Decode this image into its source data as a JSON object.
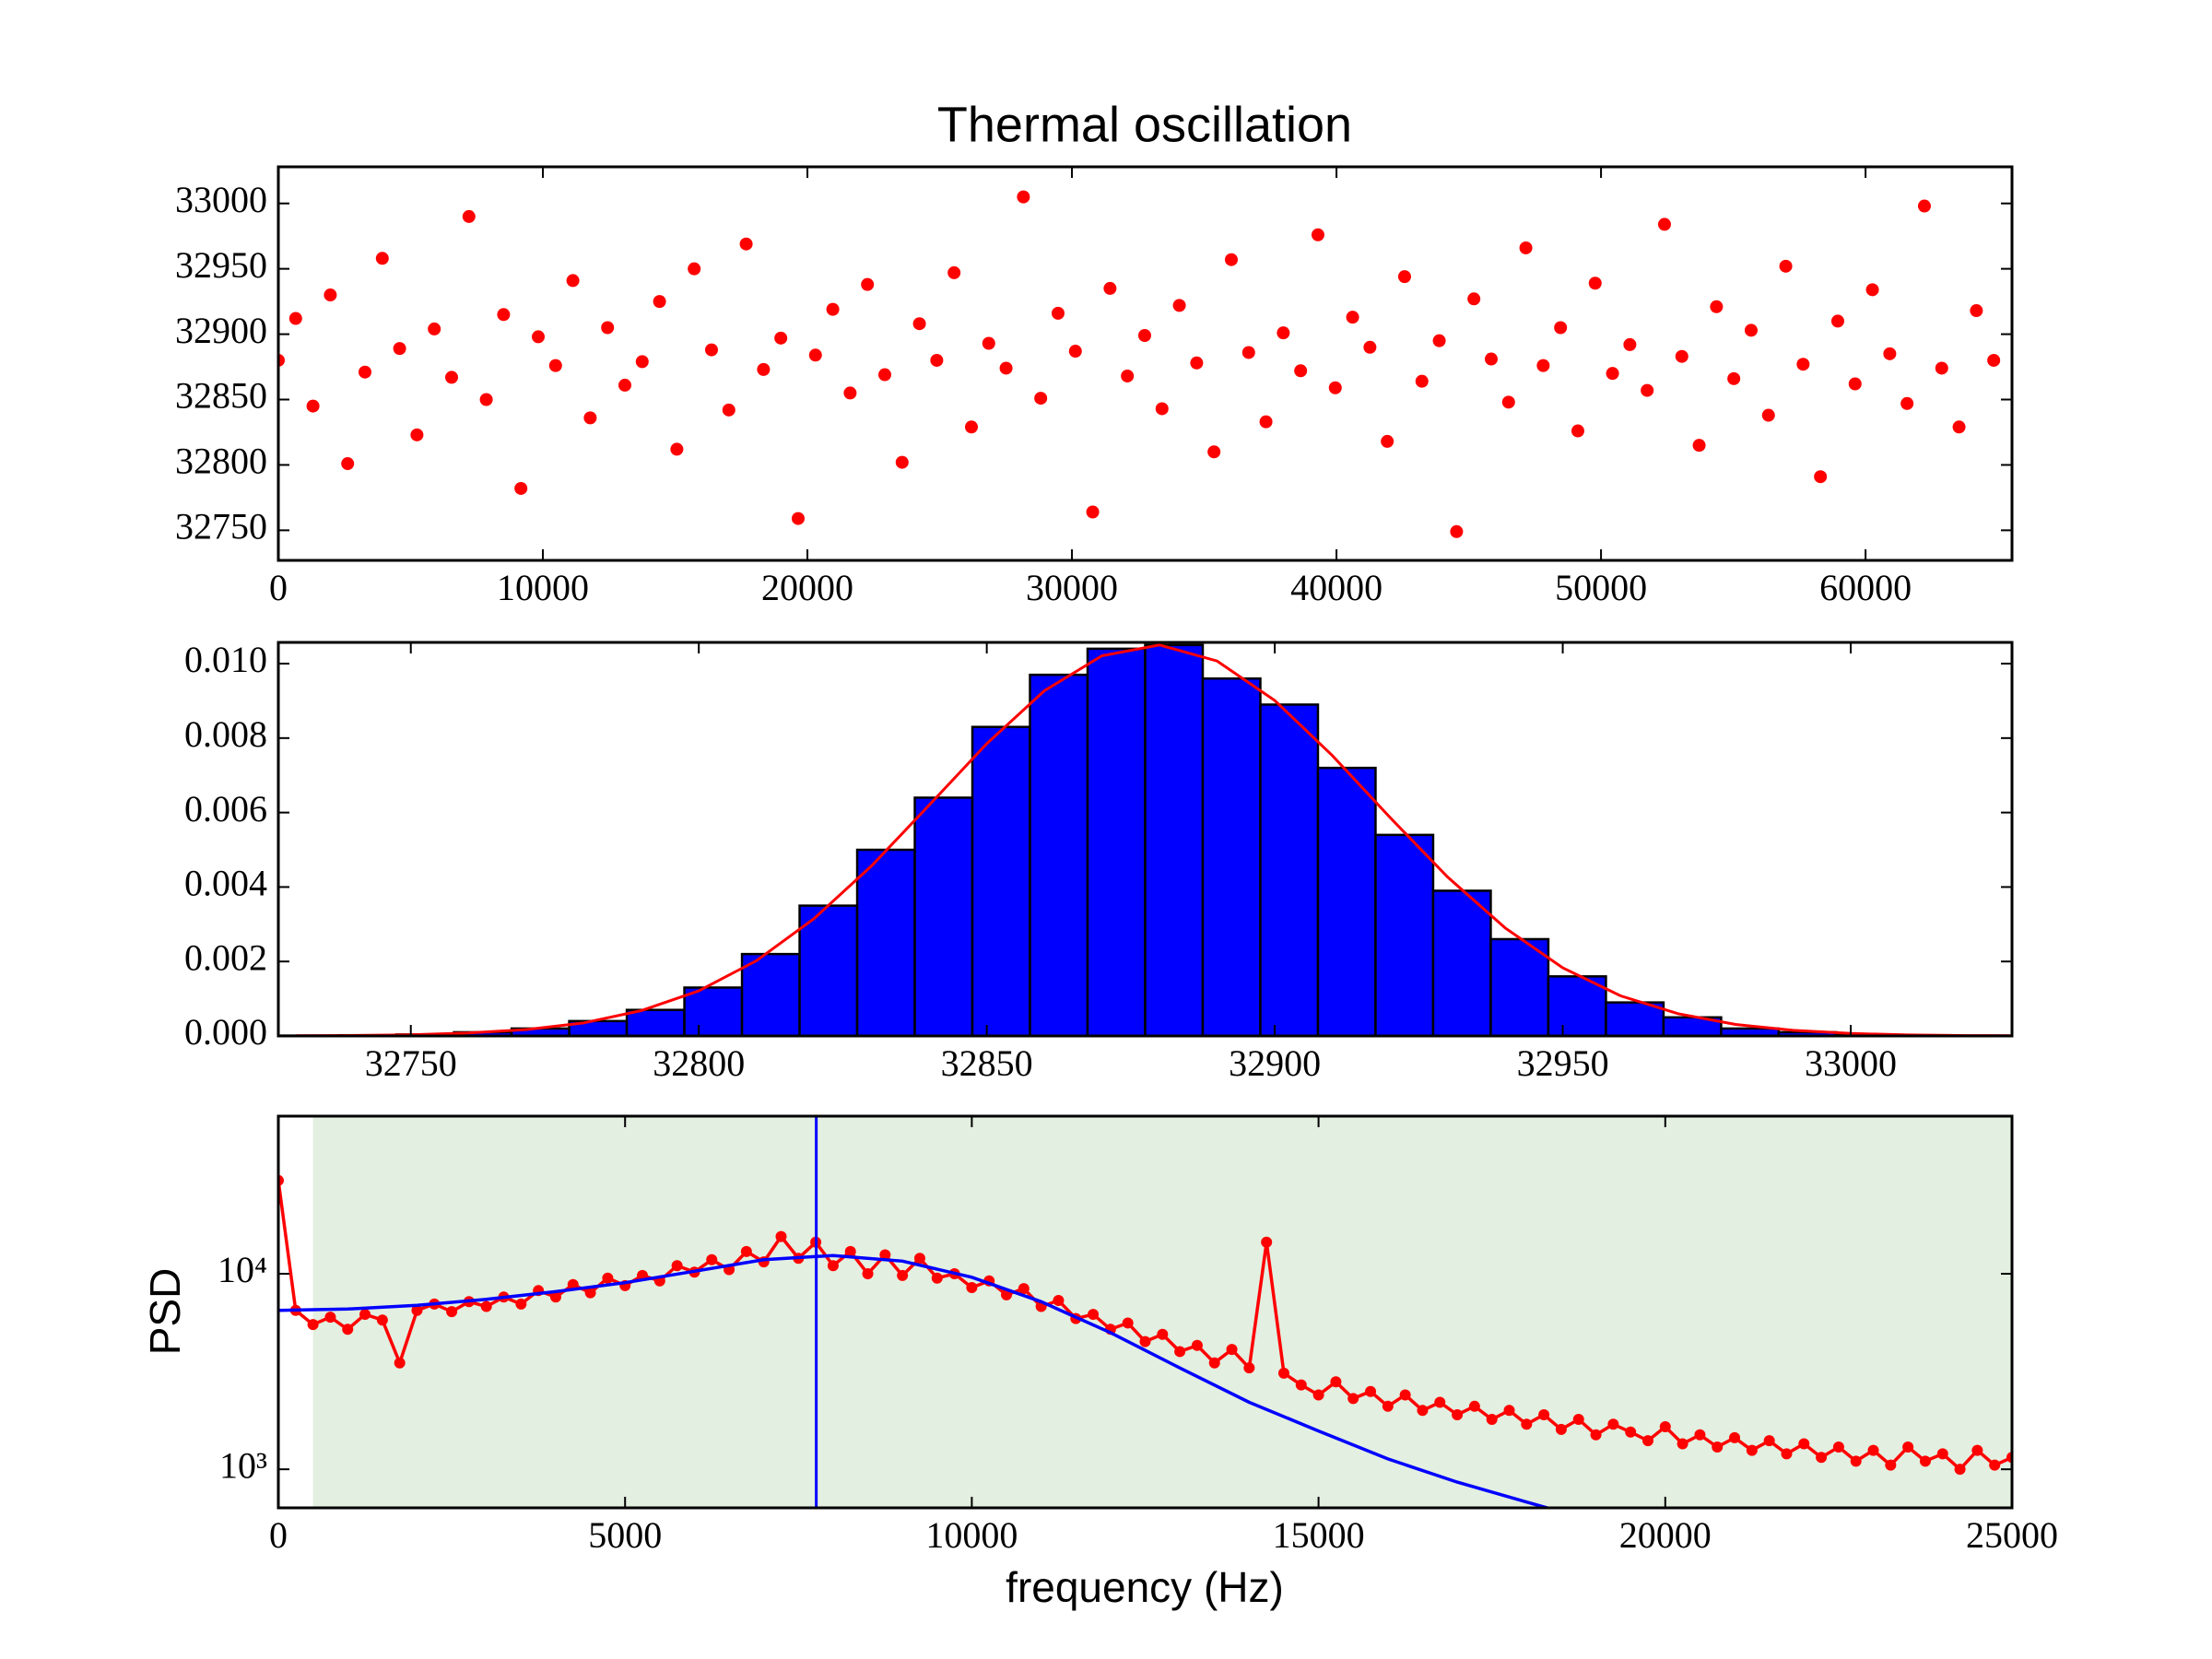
{
  "chart_data": [
    {
      "type": "scatter",
      "title": "Thermal oscillation",
      "color": "#ff0000",
      "x": [
        0,
        655,
        1310,
        1965,
        2620,
        3275,
        3930,
        4585,
        5240,
        5895,
        6550,
        7205,
        7860,
        8515,
        9170,
        9825,
        10480,
        11135,
        11790,
        12445,
        13100,
        13755,
        14410,
        15065,
        15720,
        16375,
        17030,
        17685,
        18340,
        18995,
        19650,
        20305,
        20960,
        21615,
        22270,
        22925,
        23580,
        24235,
        24890,
        25545,
        26200,
        26855,
        27510,
        28165,
        28820,
        29475,
        30130,
        30785,
        31440,
        32095,
        32750,
        33405,
        34060,
        34715,
        35370,
        36025,
        36680,
        37335,
        37990,
        38645,
        39300,
        39955,
        40610,
        41265,
        41920,
        42575,
        43230,
        43885,
        44540,
        45195,
        45850,
        46505,
        47160,
        47815,
        48470,
        49125,
        49780,
        50435,
        51090,
        51745,
        52400,
        53055,
        53710,
        54365,
        55020,
        55675,
        56330,
        56985,
        57640,
        58295,
        58950,
        59605,
        60260,
        60915,
        61570,
        62225,
        62880,
        63535,
        64190,
        64845
      ],
      "values": [
        32880,
        32912,
        32845,
        32930,
        32801,
        32871,
        32958,
        32889,
        32823,
        32904,
        32867,
        32990,
        32850,
        32915,
        32782,
        32898,
        32876,
        32941,
        32836,
        32905,
        32861,
        32879,
        32925,
        32812,
        32950,
        32888,
        32842,
        32969,
        32873,
        32897,
        32759,
        32884,
        32919,
        32855,
        32938,
        32869,
        32802,
        32908,
        32880,
        32947,
        32829,
        32893,
        32874,
        33005,
        32851,
        32916,
        32887,
        32764,
        32935,
        32868,
        32899,
        32843,
        32922,
        32878,
        32810,
        32957,
        32886,
        32833,
        32901,
        32872,
        32976,
        32859,
        32913,
        32890,
        32818,
        32944,
        32864,
        32895,
        32749,
        32927,
        32881,
        32848,
        32966,
        32876,
        32905,
        32826,
        32939,
        32870,
        32892,
        32857,
        32984,
        32883,
        32815,
        32921,
        32866,
        32903,
        32838,
        32952,
        32877,
        32791,
        32910,
        32862,
        32934,
        32885,
        32847,
        32998,
        32874,
        32829,
        32918,
        32880
      ],
      "xlim": [
        0,
        65536
      ],
      "xticks": [
        0,
        10000,
        20000,
        30000,
        40000,
        50000,
        60000
      ],
      "ylim": [
        32727,
        33028
      ],
      "yticks": [
        32750,
        32800,
        32850,
        32900,
        32950,
        33000
      ]
    },
    {
      "type": "histogram",
      "color": "#0000ff",
      "edgecolor": "#000000",
      "bins": [
        32727.5,
        32737.5,
        32747.5,
        32757.5,
        32767.5,
        32777.5,
        32787.5,
        32797.5,
        32807.5,
        32817.5,
        32827.5,
        32837.5,
        32847.5,
        32857.5,
        32867.5,
        32877.5,
        32887.5,
        32897.5,
        32907.5,
        32917.5,
        32927.5,
        32937.5,
        32947.5,
        32957.5,
        32967.5,
        32977.5,
        32987.5,
        32997.5,
        33007.5,
        33017.5,
        33027.5
      ],
      "values": [
        1e-05,
        2e-05,
        4e-05,
        0.0001,
        0.0002,
        0.0004,
        0.0007,
        0.0013,
        0.0022,
        0.0035,
        0.005,
        0.0064,
        0.0083,
        0.0097,
        0.0104,
        0.0105,
        0.0096,
        0.0089,
        0.0072,
        0.0054,
        0.0039,
        0.0026,
        0.0016,
        0.0009,
        0.0005,
        0.0002,
        0.0001,
        4e-05,
        2e-05,
        1e-05
      ],
      "series": [
        {
          "color": "#ff0000",
          "x": [
            32730,
            32740,
            32750,
            32760,
            32770,
            32780,
            32790,
            32800,
            32810,
            32820,
            32830,
            32840,
            32850,
            32860,
            32870,
            32880,
            32890,
            32900,
            32910,
            32920,
            32930,
            32940,
            32950,
            32960,
            32970,
            32980,
            32990,
            33000,
            33010,
            33020,
            33030
          ],
          "values": [
            4.8e-06,
            1.3e-05,
            3.3e-05,
            7.8e-05,
            0.00017,
            0.00035,
            0.00068,
            0.00121,
            0.00202,
            0.00315,
            0.00457,
            0.0062,
            0.00785,
            0.00927,
            0.01021,
            0.0105,
            0.01007,
            0.00901,
            0.00753,
            0.00587,
            0.00427,
            0.0029,
            0.00183,
            0.00108,
            0.0006,
            0.00031,
            0.00015,
            6.6e-05,
            2.8e-05,
            1.1e-05,
            3.9e-06
          ]
        }
      ],
      "xlim": [
        32727,
        33028
      ],
      "xticks": [
        32750,
        32800,
        32850,
        32900,
        32950,
        33000
      ],
      "ylim": [
        0,
        0.01057
      ],
      "yticks": [
        {
          "value": 0,
          "label": "0.000"
        },
        0.002,
        0.004,
        0.006,
        0.008,
        {
          "value": 0.01,
          "label": "0.010"
        }
      ]
    },
    {
      "type": "line",
      "xlabel": "frequency (Hz)",
      "ylabel": "PSD",
      "yscale": "log",
      "spans": [
        {
          "x": [
            500,
            25000
          ],
          "color": "#e3efe0"
        }
      ],
      "vlines": [
        {
          "x": 7757,
          "color": "#0000ff"
        }
      ],
      "series": [
        {
          "color": "#ff0000",
          "marker": true,
          "x": [
            0,
            250,
            500,
            750,
            1000,
            1250,
            1500,
            1750,
            2000,
            2250,
            2500,
            2750,
            3000,
            3250,
            3500,
            3750,
            4000,
            4250,
            4500,
            4750,
            5000,
            5250,
            5500,
            5750,
            6000,
            6250,
            6500,
            6750,
            7000,
            7250,
            7500,
            7750,
            8000,
            8250,
            8500,
            8750,
            9000,
            9250,
            9500,
            9750,
            10000,
            10250,
            10500,
            10750,
            11000,
            11250,
            11500,
            11750,
            12000,
            12250,
            12500,
            12750,
            13000,
            13250,
            13500,
            13750,
            14000,
            14250,
            14500,
            14750,
            15000,
            15250,
            15500,
            15750,
            16000,
            16250,
            16500,
            16750,
            17000,
            17250,
            17500,
            17750,
            18000,
            18250,
            18500,
            18750,
            19000,
            19250,
            19500,
            19750,
            20000,
            20250,
            20500,
            20750,
            21000,
            21250,
            21500,
            21750,
            22000,
            22250,
            22500,
            22750,
            23000,
            23250,
            23500,
            23750,
            24000,
            24250,
            24500,
            24750,
            25000
          ],
          "values": [
            30000,
            6500,
            5500,
            6000,
            5200,
            6200,
            5800,
            3500,
            6500,
            7000,
            6400,
            7200,
            6800,
            7600,
            7000,
            8200,
            7600,
            8800,
            8000,
            9500,
            8700,
            9800,
            9200,
            11000,
            10200,
            11800,
            10500,
            13000,
            11500,
            15500,
            12000,
            14500,
            11000,
            13000,
            10000,
            12500,
            9800,
            12000,
            9500,
            10000,
            8500,
            9200,
            7800,
            8400,
            6800,
            7300,
            5900,
            6200,
            5200,
            5600,
            4500,
            4900,
            4000,
            4300,
            3500,
            4100,
            3300,
            14500,
            3100,
            2700,
            2400,
            2800,
            2300,
            2500,
            2100,
            2400,
            2000,
            2200,
            1900,
            2100,
            1800,
            2000,
            1700,
            1900,
            1600,
            1800,
            1500,
            1700,
            1550,
            1400,
            1650,
            1350,
            1500,
            1300,
            1450,
            1250,
            1400,
            1200,
            1350,
            1150,
            1300,
            1100,
            1250,
            1050,
            1300,
            1100,
            1200,
            1000,
            1250,
            1050,
            1150
          ]
        },
        {
          "color": "#0000ff",
          "marker": false,
          "x": [
            0,
            1000,
            2000,
            3000,
            4000,
            5000,
            6000,
            7000,
            8000,
            9000,
            10000,
            11000,
            12000,
            13000,
            14000,
            15000,
            16000,
            17000,
            18000,
            19000
          ],
          "values": [
            6500,
            6600,
            6900,
            7400,
            8100,
            9000,
            10300,
            11800,
            12400,
            11600,
            9600,
            7200,
            5000,
            3300,
            2200,
            1570,
            1130,
            860,
            680,
            540
          ]
        }
      ],
      "xlim": [
        0,
        25000
      ],
      "xticks": [
        0,
        5000,
        10000,
        15000,
        20000,
        25000
      ],
      "ylim": [
        635,
        64000
      ],
      "yticks": [
        {
          "value": 1000,
          "label": "10³"
        },
        {
          "value": 10000,
          "label": "10⁴"
        }
      ]
    }
  ]
}
